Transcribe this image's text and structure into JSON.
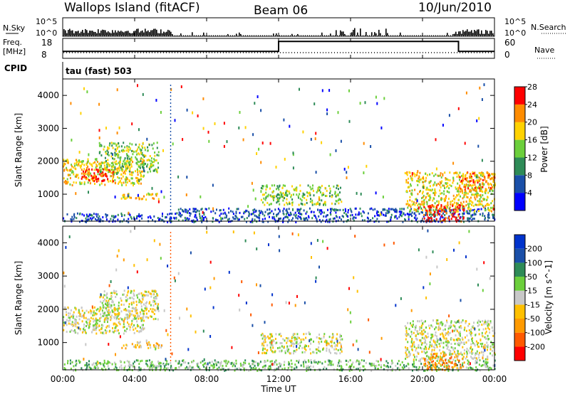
{
  "header": {
    "station": "Wallops Island (fitACF)",
    "beam": "Beam 06",
    "date": "10/Jun/2010"
  },
  "strips": {
    "nsky_label": "N.Sky",
    "nsky_ticks": [
      "10^5",
      "10^0"
    ],
    "nsearch_label": "N.Search",
    "nsearch_ticks": [
      "10^5",
      "10^0"
    ],
    "freq_label": "Freq.",
    "freq_unit": "[MHz]",
    "freq_ticks": [
      "18",
      "8"
    ],
    "nave_label": "Nave",
    "nave_ticks": [
      "60",
      "0"
    ],
    "cpid_label": "CPID",
    "cpid_value": "tau (fast) 503"
  },
  "chart_data": [
    {
      "type": "heatmap",
      "panel": "power",
      "ylabel": "Slant Range [km]",
      "yticks": [
        "1000",
        "2000",
        "3000",
        "4000"
      ],
      "ylim": [
        180,
        4500
      ],
      "xlim_hours": [
        0,
        24
      ],
      "colorbar_label": "Power [dB]",
      "colorbar_ticks": [
        "4",
        "8",
        "12",
        "16",
        "20",
        "24",
        "28"
      ],
      "colors": [
        "#0000ff",
        "#1a4fa8",
        "#2e8b57",
        "#6ccf3c",
        "#ffd200",
        "#ff8c00",
        "#ff0000"
      ],
      "echo_regions": [
        {
          "t0": 0.0,
          "t1": 4.5,
          "r0": 1300,
          "r1": 2100,
          "level": 4
        },
        {
          "t0": 1.0,
          "t1": 2.8,
          "r0": 1400,
          "r1": 1800,
          "level": 6
        },
        {
          "t0": 2.0,
          "t1": 5.3,
          "r0": 1700,
          "r1": 2600,
          "level": 3
        },
        {
          "t0": 3.2,
          "t1": 5.5,
          "r0": 850,
          "r1": 1050,
          "level": 4
        },
        {
          "t0": 0.0,
          "t1": 6.0,
          "r0": 180,
          "r1": 450,
          "level": 1
        },
        {
          "t0": 6.0,
          "t1": 24.0,
          "r0": 180,
          "r1": 600,
          "level": 1
        },
        {
          "t0": 11.0,
          "t1": 15.5,
          "r0": 700,
          "r1": 1300,
          "level": 3
        },
        {
          "t0": 19.0,
          "t1": 24.0,
          "r0": 500,
          "r1": 1700,
          "level": 4
        },
        {
          "t0": 20.0,
          "t1": 22.3,
          "r0": 200,
          "r1": 700,
          "level": 6
        },
        {
          "t0": 22.0,
          "t1": 24.0,
          "r0": 1100,
          "r1": 1700,
          "level": 5
        }
      ]
    },
    {
      "type": "heatmap",
      "panel": "velocity",
      "ylabel": "Slant Range [km]",
      "yticks": [
        "1000",
        "2000",
        "3000",
        "4000"
      ],
      "ylim": [
        180,
        4500
      ],
      "xlabel": "Time UT",
      "xticks": [
        "00:00",
        "04:00",
        "08:00",
        "12:00",
        "16:00",
        "20:00",
        "00:00"
      ],
      "xlim_hours": [
        0,
        24
      ],
      "colorbar_label": "Velocity [m s^-1]",
      "colorbar_ticks": [
        "-200",
        "-100",
        "-50",
        "-15",
        "15",
        "50",
        "100",
        "200"
      ],
      "colors": [
        "#ff0000",
        "#ff5a00",
        "#ff9a00",
        "#ffc000",
        "#c8c8c8",
        "#6ccf3c",
        "#2e8b57",
        "#1a4fa8",
        "#0033cc"
      ],
      "echo_regions": [
        {
          "t0": 0.0,
          "t1": 4.5,
          "r0": 1300,
          "r1": 2100,
          "level": 4
        },
        {
          "t0": 2.0,
          "t1": 5.3,
          "r0": 1700,
          "r1": 2600,
          "level": 4
        },
        {
          "t0": 3.2,
          "t1": 5.5,
          "r0": 850,
          "r1": 1050,
          "level": 3
        },
        {
          "t0": 0.0,
          "t1": 24.0,
          "r0": 180,
          "r1": 500,
          "level": 5
        },
        {
          "t0": 11.0,
          "t1": 15.5,
          "r0": 700,
          "r1": 1300,
          "level": 4
        },
        {
          "t0": 19.0,
          "t1": 24.0,
          "r0": 500,
          "r1": 1700,
          "level": 4
        },
        {
          "t0": 20.0,
          "t1": 22.3,
          "r0": 200,
          "r1": 700,
          "level": 2
        }
      ]
    }
  ],
  "frequency_trace": {
    "t": [
      0,
      12,
      12,
      22,
      22,
      24
    ],
    "level": [
      0.35,
      0.35,
      0.85,
      0.85,
      0.35,
      0.35
    ]
  }
}
